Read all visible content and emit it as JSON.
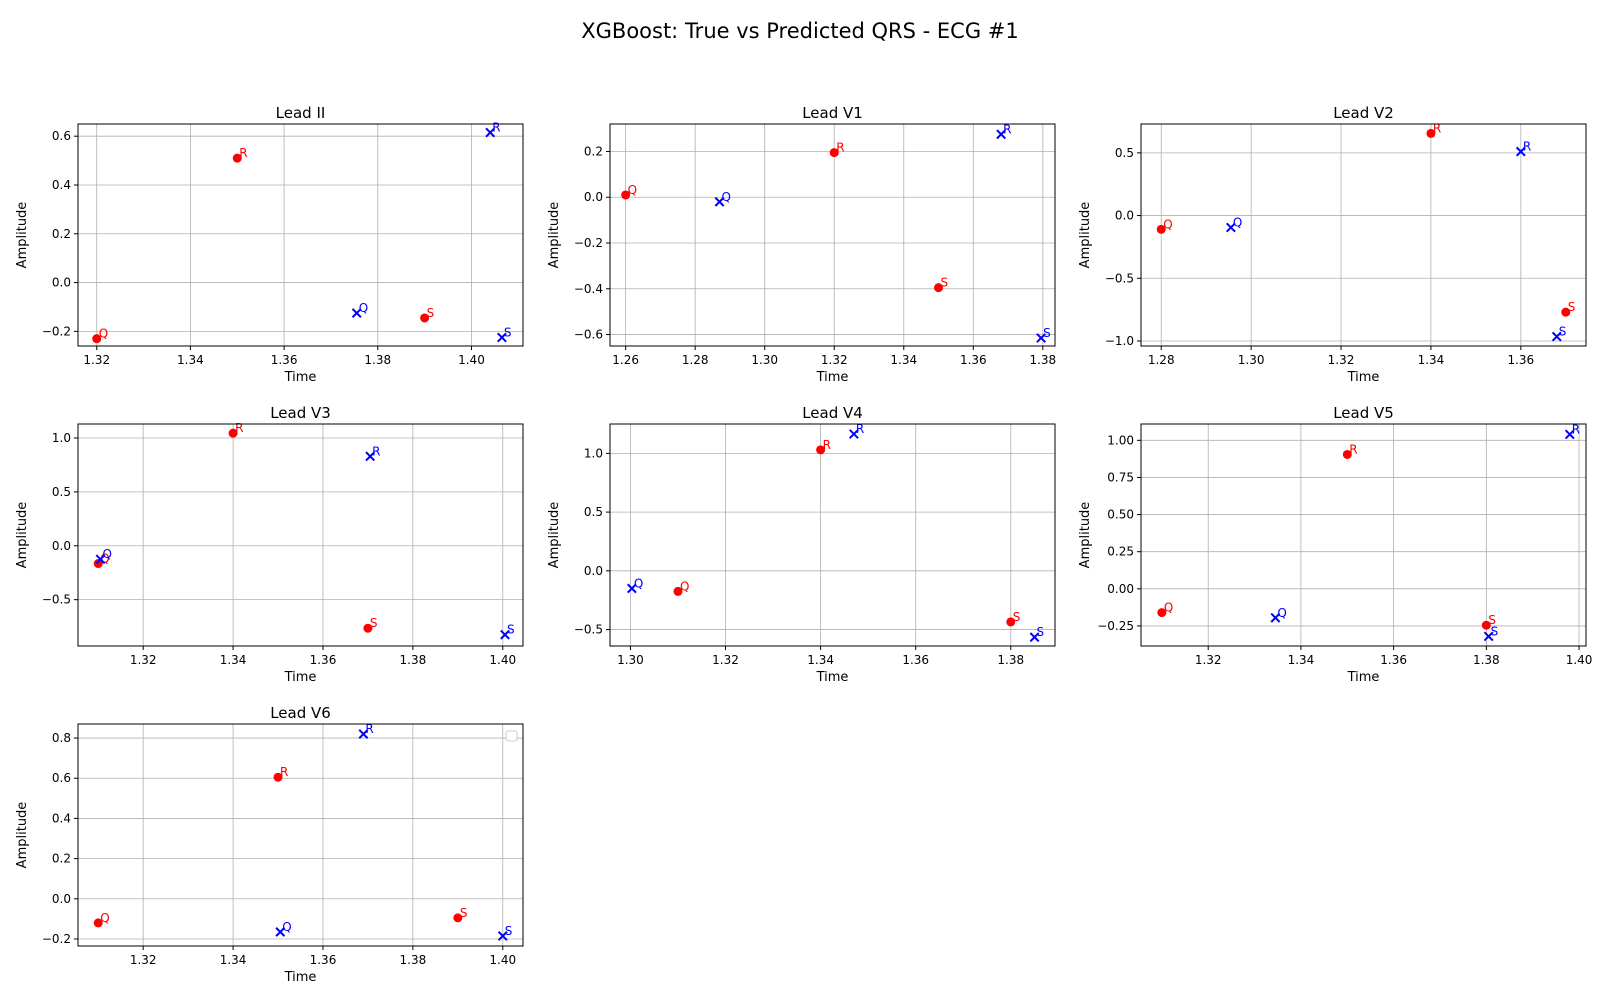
{
  "figure": {
    "title": "XGBoost: True vs Predicted QRS - ECG #1"
  },
  "colors": {
    "true": "#ff0000",
    "predicted": "#0000ff",
    "grid": "#b0b0b0",
    "axes": "#000000"
  },
  "chart_data": [
    {
      "type": "scatter",
      "title": "Lead II",
      "xlabel": "Time",
      "ylabel": "Amplitude",
      "grid": true,
      "xlim": [
        1.316,
        1.411
      ],
      "ylim": [
        -0.26,
        0.65
      ],
      "xticks": [
        1.32,
        1.34,
        1.36,
        1.38,
        1.4
      ],
      "xtick_labels": [
        "1.32",
        "1.34",
        "1.36",
        "1.38",
        "1.40"
      ],
      "yticks": [
        -0.2,
        0.0,
        0.2,
        0.4,
        0.6
      ],
      "ytick_labels": [
        "−0.2",
        "0.0",
        "0.2",
        "0.4",
        "0.6"
      ],
      "series": [
        {
          "marker": "circle",
          "color": "#ff0000",
          "points": [
            {
              "label": "Q",
              "x": 1.32,
              "y": -0.23
            },
            {
              "label": "R",
              "x": 1.35,
              "y": 0.51
            },
            {
              "label": "S",
              "x": 1.39,
              "y": -0.145
            }
          ]
        },
        {
          "marker": "x",
          "color": "#0000ff",
          "points": [
            {
              "label": "Q",
              "x": 1.3755,
              "y": -0.125
            },
            {
              "label": "R",
              "x": 1.404,
              "y": 0.615
            },
            {
              "label": "S",
              "x": 1.4065,
              "y": -0.225
            }
          ]
        }
      ]
    },
    {
      "type": "scatter",
      "title": "Lead V1",
      "xlabel": "Time",
      "ylabel": "Amplitude",
      "grid": true,
      "xlim": [
        1.2555,
        1.3835
      ],
      "ylim": [
        -0.65,
        0.32
      ],
      "xticks": [
        1.26,
        1.28,
        1.3,
        1.32,
        1.34,
        1.36,
        1.38
      ],
      "xtick_labels": [
        "1.26",
        "1.28",
        "1.30",
        "1.32",
        "1.34",
        "1.36",
        "1.38"
      ],
      "yticks": [
        -0.6,
        -0.4,
        -0.2,
        0.0,
        0.2
      ],
      "ytick_labels": [
        "−0.6",
        "−0.4",
        "−0.2",
        "0.0",
        "0.2"
      ],
      "series": [
        {
          "marker": "circle",
          "color": "#ff0000",
          "points": [
            {
              "label": "Q",
              "x": 1.26,
              "y": 0.01
            },
            {
              "label": "R",
              "x": 1.32,
              "y": 0.195
            },
            {
              "label": "S",
              "x": 1.35,
              "y": -0.395
            }
          ]
        },
        {
          "marker": "x",
          "color": "#0000ff",
          "points": [
            {
              "label": "Q",
              "x": 1.287,
              "y": -0.02
            },
            {
              "label": "R",
              "x": 1.368,
              "y": 0.275
            },
            {
              "label": "S",
              "x": 1.3795,
              "y": -0.615
            }
          ]
        }
      ]
    },
    {
      "type": "scatter",
      "title": "Lead V2",
      "xlabel": "Time",
      "ylabel": "Amplitude",
      "grid": true,
      "xlim": [
        1.2755,
        1.3745
      ],
      "ylim": [
        -1.04,
        0.73
      ],
      "xticks": [
        1.28,
        1.3,
        1.32,
        1.34,
        1.36
      ],
      "xtick_labels": [
        "1.28",
        "1.30",
        "1.32",
        "1.34",
        "1.36"
      ],
      "yticks": [
        -1.0,
        -0.5,
        0.0,
        0.5
      ],
      "ytick_labels": [
        "−1.0",
        "−0.5",
        "0.0",
        "0.5"
      ],
      "series": [
        {
          "marker": "circle",
          "color": "#ff0000",
          "points": [
            {
              "label": "Q",
              "x": 1.28,
              "y": -0.11
            },
            {
              "label": "R",
              "x": 1.34,
              "y": 0.655
            },
            {
              "label": "S",
              "x": 1.37,
              "y": -0.77
            }
          ]
        },
        {
          "marker": "x",
          "color": "#0000ff",
          "points": [
            {
              "label": "Q",
              "x": 1.2955,
              "y": -0.095
            },
            {
              "label": "R",
              "x": 1.36,
              "y": 0.51
            },
            {
              "label": "S",
              "x": 1.368,
              "y": -0.965
            }
          ]
        }
      ]
    },
    {
      "type": "scatter",
      "title": "Lead V3",
      "xlabel": "Time",
      "ylabel": "Amplitude",
      "grid": true,
      "xlim": [
        1.3055,
        1.4045
      ],
      "ylim": [
        -0.93,
        1.13
      ],
      "xticks": [
        1.32,
        1.34,
        1.36,
        1.38,
        1.4
      ],
      "xtick_labels": [
        "1.32",
        "1.34",
        "1.36",
        "1.38",
        "1.40"
      ],
      "yticks": [
        -0.5,
        0.0,
        0.5,
        1.0
      ],
      "ytick_labels": [
        "−0.5",
        "0.0",
        "0.5",
        "1.0"
      ],
      "series": [
        {
          "marker": "circle",
          "color": "#ff0000",
          "points": [
            {
              "label": "Q",
              "x": 1.31,
              "y": -0.165
            },
            {
              "label": "R",
              "x": 1.34,
              "y": 1.045
            },
            {
              "label": "S",
              "x": 1.37,
              "y": -0.765
            }
          ]
        },
        {
          "marker": "x",
          "color": "#0000ff",
          "points": [
            {
              "label": "Q",
              "x": 1.3105,
              "y": -0.125
            },
            {
              "label": "R",
              "x": 1.3705,
              "y": 0.83
            },
            {
              "label": "S",
              "x": 1.4005,
              "y": -0.825
            }
          ]
        }
      ]
    },
    {
      "type": "scatter",
      "title": "Lead V4",
      "xlabel": "Time",
      "ylabel": "Amplitude",
      "grid": true,
      "xlim": [
        1.2957,
        1.3893
      ],
      "ylim": [
        -0.64,
        1.25
      ],
      "xticks": [
        1.3,
        1.32,
        1.34,
        1.36,
        1.38
      ],
      "xtick_labels": [
        "1.30",
        "1.32",
        "1.34",
        "1.36",
        "1.38"
      ],
      "yticks": [
        -0.5,
        0.0,
        0.5,
        1.0
      ],
      "ytick_labels": [
        "−0.5",
        "0.0",
        "0.5",
        "1.0"
      ],
      "series": [
        {
          "marker": "circle",
          "color": "#ff0000",
          "points": [
            {
              "label": "Q",
              "x": 1.31,
              "y": -0.175
            },
            {
              "label": "R",
              "x": 1.34,
              "y": 1.03
            },
            {
              "label": "S",
              "x": 1.38,
              "y": -0.435
            }
          ]
        },
        {
          "marker": "x",
          "color": "#0000ff",
          "points": [
            {
              "label": "Q",
              "x": 1.3003,
              "y": -0.15
            },
            {
              "label": "R",
              "x": 1.347,
              "y": 1.165
            },
            {
              "label": "S",
              "x": 1.385,
              "y": -0.565
            }
          ]
        }
      ]
    },
    {
      "type": "scatter",
      "title": "Lead V5",
      "xlabel": "Time",
      "ylabel": "Amplitude",
      "grid": true,
      "xlim": [
        1.3055,
        1.4015
      ],
      "ylim": [
        -0.385,
        1.11
      ],
      "xticks": [
        1.32,
        1.34,
        1.36,
        1.38,
        1.4
      ],
      "xtick_labels": [
        "1.32",
        "1.34",
        "1.36",
        "1.38",
        "1.40"
      ],
      "yticks": [
        -0.25,
        0.0,
        0.25,
        0.5,
        0.75,
        1.0
      ],
      "ytick_labels": [
        "−0.25",
        "0.00",
        "0.25",
        "0.50",
        "0.75",
        "1.00"
      ],
      "series": [
        {
          "marker": "circle",
          "color": "#ff0000",
          "points": [
            {
              "label": "Q",
              "x": 1.31,
              "y": -0.16
            },
            {
              "label": "R",
              "x": 1.35,
              "y": 0.905
            },
            {
              "label": "S",
              "x": 1.38,
              "y": -0.245
            }
          ]
        },
        {
          "marker": "x",
          "color": "#0000ff",
          "points": [
            {
              "label": "Q",
              "x": 1.3345,
              "y": -0.195
            },
            {
              "label": "R",
              "x": 1.398,
              "y": 1.04
            },
            {
              "label": "S",
              "x": 1.3805,
              "y": -0.32
            }
          ]
        }
      ]
    },
    {
      "type": "scatter",
      "title": "Lead V6",
      "xlabel": "Time",
      "ylabel": "Amplitude",
      "grid": true,
      "xlim": [
        1.3055,
        1.4045
      ],
      "ylim": [
        -0.235,
        0.87
      ],
      "xticks": [
        1.32,
        1.34,
        1.36,
        1.38,
        1.4
      ],
      "xtick_labels": [
        "1.32",
        "1.34",
        "1.36",
        "1.38",
        "1.40"
      ],
      "yticks": [
        -0.2,
        0.0,
        0.2,
        0.4,
        0.6,
        0.8
      ],
      "ytick_labels": [
        "−0.2",
        "0.0",
        "0.2",
        "0.4",
        "0.6",
        "0.8"
      ],
      "legend": "upper right (empty)",
      "series": [
        {
          "marker": "circle",
          "color": "#ff0000",
          "points": [
            {
              "label": "Q",
              "x": 1.31,
              "y": -0.12
            },
            {
              "label": "R",
              "x": 1.35,
              "y": 0.605
            },
            {
              "label": "S",
              "x": 1.39,
              "y": -0.095
            }
          ]
        },
        {
          "marker": "x",
          "color": "#0000ff",
          "points": [
            {
              "label": "Q",
              "x": 1.3505,
              "y": -0.165
            },
            {
              "label": "R",
              "x": 1.369,
              "y": 0.82
            },
            {
              "label": "S",
              "x": 1.4,
              "y": -0.185
            }
          ]
        }
      ]
    }
  ]
}
